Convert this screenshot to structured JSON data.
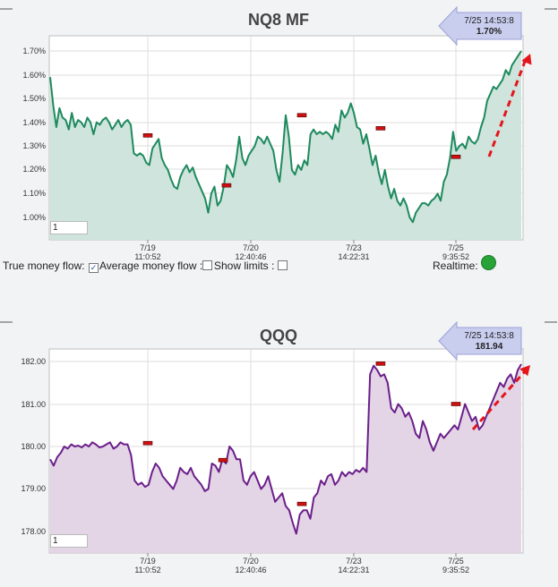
{
  "colors": {
    "nq_line": "#1e8a5e",
    "nq_fill": "#cfe4dc",
    "qqq_line": "#6b1f8a",
    "qqq_fill": "#e3d4e6",
    "arrow": "#e4151b",
    "label_bg": "#c9cdee",
    "marker": "#cc1111"
  },
  "x_ticks": [
    {
      "date": "7/19",
      "time": "11:0:52"
    },
    {
      "date": "7/20",
      "time": "12:40:46"
    },
    {
      "date": "7/23",
      "time": "14:22:31"
    },
    {
      "date": "7/25",
      "time": "9:35:52"
    }
  ],
  "controls": {
    "true_money_flow": "True money flow:",
    "average_money_flow": "Average money flow :",
    "show_limits": "Show limits :",
    "realtime": "Realtime:"
  },
  "chart_data": [
    {
      "type": "area",
      "title": "NQ8 MF",
      "range_value": "1",
      "label": {
        "time": "7/25 14:53:8",
        "value": "1.70%"
      },
      "yticks": [
        "1.70%",
        "1.60%",
        "1.50%",
        "1.40%",
        "1.30%",
        "1.20%",
        "1.10%",
        "1.00%"
      ],
      "ylim": [
        0.95,
        1.73
      ],
      "y": [
        1.59,
        1.47,
        1.38,
        1.46,
        1.42,
        1.41,
        1.37,
        1.44,
        1.38,
        1.41,
        1.4,
        1.38,
        1.42,
        1.4,
        1.35,
        1.4,
        1.39,
        1.41,
        1.42,
        1.4,
        1.37,
        1.39,
        1.41,
        1.38,
        1.4,
        1.41,
        1.39,
        1.27,
        1.26,
        1.27,
        1.26,
        1.23,
        1.22,
        1.29,
        1.31,
        1.33,
        1.25,
        1.22,
        1.2,
        1.16,
        1.13,
        1.12,
        1.17,
        1.2,
        1.22,
        1.19,
        1.21,
        1.17,
        1.14,
        1.11,
        1.08,
        1.02,
        1.1,
        1.13,
        1.05,
        1.07,
        1.13,
        1.22,
        1.2,
        1.17,
        1.24,
        1.34,
        1.25,
        1.22,
        1.26,
        1.28,
        1.3,
        1.34,
        1.33,
        1.31,
        1.34,
        1.31,
        1.28,
        1.2,
        1.15,
        1.27,
        1.43,
        1.34,
        1.2,
        1.18,
        1.22,
        1.2,
        1.24,
        1.22,
        1.35,
        1.37,
        1.35,
        1.36,
        1.35,
        1.36,
        1.35,
        1.33,
        1.39,
        1.36,
        1.45,
        1.42,
        1.44,
        1.48,
        1.44,
        1.38,
        1.37,
        1.31,
        1.35,
        1.29,
        1.22,
        1.26,
        1.19,
        1.14,
        1.2,
        1.13,
        1.08,
        1.12,
        1.07,
        1.05,
        1.08,
        1.05,
        1.0,
        0.98,
        1.02,
        1.04,
        1.06,
        1.06,
        1.05,
        1.07,
        1.08,
        1.1,
        1.07,
        1.15,
        1.18,
        1.25,
        1.36,
        1.28,
        1.3,
        1.31,
        1.29,
        1.34,
        1.32,
        1.31,
        1.33,
        1.38,
        1.42,
        1.49,
        1.52,
        1.55,
        1.54,
        1.56,
        1.58,
        1.62,
        1.6,
        1.64,
        1.66,
        1.68,
        1.7
      ],
      "markers": [
        22,
        45,
        67,
        90,
        112
      ],
      "marker_values": [
        1.345,
        1.135,
        1.43,
        1.375,
        1.255
      ]
    },
    {
      "type": "area",
      "title": "QQQ",
      "range_value": "1",
      "label": {
        "time": "7/25 14:53:8",
        "value": "181.94"
      },
      "yticks": [
        "182.00",
        "181.00",
        "180.00",
        "179.00",
        "178.00"
      ],
      "ylim": [
        177.6,
        182.2
      ],
      "y": [
        179.7,
        179.55,
        179.75,
        179.85,
        180.0,
        179.95,
        180.05,
        180.0,
        180.02,
        179.98,
        180.05,
        180.0,
        180.1,
        180.05,
        179.98,
        180.0,
        180.05,
        180.1,
        179.95,
        180.0,
        180.1,
        180.05,
        180.05,
        179.8,
        179.2,
        179.1,
        179.15,
        179.05,
        179.1,
        179.4,
        179.6,
        179.5,
        179.3,
        179.2,
        179.1,
        179.0,
        179.2,
        179.5,
        179.4,
        179.35,
        179.5,
        179.3,
        179.2,
        179.1,
        178.95,
        179.0,
        179.6,
        179.55,
        179.4,
        179.7,
        179.6,
        180.0,
        179.9,
        179.7,
        179.7,
        179.2,
        179.1,
        179.3,
        179.4,
        179.2,
        179.0,
        179.1,
        179.3,
        179.0,
        178.7,
        178.8,
        178.9,
        178.6,
        178.5,
        178.2,
        177.95,
        178.4,
        178.5,
        178.5,
        178.3,
        178.8,
        178.9,
        179.2,
        179.1,
        179.3,
        179.35,
        179.1,
        179.2,
        179.4,
        179.3,
        179.4,
        179.35,
        179.45,
        179.4,
        179.5,
        179.4,
        181.7,
        181.9,
        181.8,
        181.65,
        181.7,
        181.5,
        180.9,
        180.8,
        181.0,
        180.9,
        180.7,
        180.8,
        180.6,
        180.3,
        180.2,
        180.6,
        180.4,
        180.1,
        179.9,
        180.1,
        180.3,
        180.2,
        180.3,
        180.4,
        180.5,
        180.4,
        180.7,
        181.0,
        180.8,
        180.6,
        180.7,
        180.4,
        180.5,
        180.7,
        180.9,
        181.1,
        181.3,
        181.5,
        181.4,
        181.6,
        181.7,
        181.5,
        181.8,
        181.94
      ],
      "markers": [
        22,
        44,
        67,
        90,
        112
      ],
      "marker_values": [
        180.08,
        179.68,
        178.65,
        181.95,
        181.0
      ]
    }
  ]
}
